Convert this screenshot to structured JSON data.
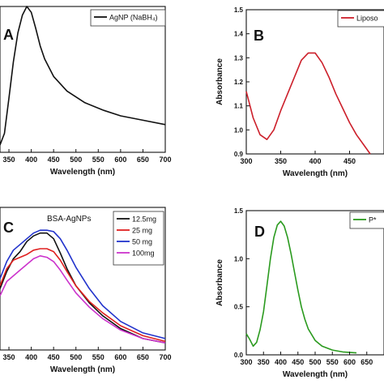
{
  "chart_data": [
    {
      "panel_label": "A",
      "type": "line",
      "xlabel": "Wavelength (nm)",
      "ylabel": "",
      "xlim": [
        330,
        700
      ],
      "ylim": [
        0,
        1
      ],
      "xticks": [
        "350",
        "400",
        "450",
        "500",
        "550",
        "600",
        "650",
        "700"
      ],
      "yticks": [],
      "legend_position": "top-right",
      "series": [
        {
          "name": "AgNP (NaBH₄)",
          "color": "#111111",
          "x": [
            330,
            340,
            350,
            360,
            370,
            380,
            390,
            400,
            410,
            420,
            430,
            450,
            480,
            520,
            560,
            600,
            650,
            700
          ],
          "y": [
            0.05,
            0.13,
            0.37,
            0.62,
            0.82,
            0.94,
            1.0,
            0.96,
            0.85,
            0.73,
            0.64,
            0.52,
            0.42,
            0.34,
            0.29,
            0.25,
            0.22,
            0.19
          ]
        }
      ]
    },
    {
      "panel_label": "B",
      "type": "line",
      "xlabel": "Wavelength (nm)",
      "ylabel": "Absorbance",
      "xlim": [
        300,
        500
      ],
      "ylim": [
        0.9,
        1.5
      ],
      "xticks": [
        "300",
        "350",
        "400",
        "450"
      ],
      "yticks": [
        "0.9",
        "1.0",
        "1.1",
        "1.2",
        "1.3",
        "1.4",
        "1.5"
      ],
      "legend_position": "top-right",
      "series": [
        {
          "name": "Liposo",
          "color": "#cc1f2a",
          "x": [
            300,
            310,
            320,
            330,
            340,
            350,
            360,
            370,
            380,
            390,
            400,
            410,
            420,
            430,
            440,
            450,
            460,
            470,
            480
          ],
          "y": [
            1.16,
            1.05,
            0.98,
            0.96,
            1.0,
            1.08,
            1.15,
            1.22,
            1.29,
            1.32,
            1.32,
            1.28,
            1.22,
            1.15,
            1.09,
            1.03,
            0.98,
            0.94,
            0.9
          ]
        }
      ]
    },
    {
      "panel_label": "C",
      "type": "line",
      "title": "BSA-AgNPs",
      "xlabel": "Wavelength (nm)",
      "ylabel": "",
      "xlim": [
        330,
        700
      ],
      "ylim": [
        0,
        1
      ],
      "xticks": [
        "350",
        "400",
        "450",
        "500",
        "550",
        "600",
        "650",
        "700"
      ],
      "yticks": [],
      "legend_position": "top-right",
      "series": [
        {
          "name": "12.5mg",
          "color": "#111111",
          "x": [
            330,
            345,
            360,
            375,
            390,
            405,
            420,
            435,
            450,
            465,
            480,
            500,
            530,
            560,
            600,
            650,
            700
          ],
          "y": [
            0.43,
            0.55,
            0.64,
            0.69,
            0.76,
            0.8,
            0.82,
            0.82,
            0.78,
            0.68,
            0.57,
            0.45,
            0.33,
            0.24,
            0.15,
            0.08,
            0.05
          ]
        },
        {
          "name": "25 mg",
          "color": "#e02020",
          "x": [
            330,
            345,
            360,
            375,
            390,
            405,
            420,
            435,
            450,
            465,
            480,
            500,
            530,
            560,
            600,
            650,
            700
          ],
          "y": [
            0.45,
            0.57,
            0.63,
            0.65,
            0.67,
            0.7,
            0.71,
            0.71,
            0.69,
            0.63,
            0.55,
            0.45,
            0.34,
            0.26,
            0.17,
            0.1,
            0.06
          ]
        },
        {
          "name": "50 mg",
          "color": "#2233cc",
          "x": [
            330,
            345,
            360,
            375,
            390,
            405,
            420,
            435,
            450,
            465,
            480,
            500,
            530,
            560,
            600,
            650,
            700
          ],
          "y": [
            0.5,
            0.62,
            0.7,
            0.74,
            0.78,
            0.82,
            0.84,
            0.84,
            0.83,
            0.78,
            0.7,
            0.58,
            0.43,
            0.31,
            0.2,
            0.12,
            0.08
          ]
        },
        {
          "name": "100mg",
          "color": "#cc33cc",
          "x": [
            330,
            345,
            360,
            375,
            390,
            405,
            420,
            435,
            450,
            465,
            480,
            500,
            530,
            560,
            600,
            650,
            700
          ],
          "y": [
            0.38,
            0.48,
            0.52,
            0.56,
            0.6,
            0.64,
            0.66,
            0.65,
            0.62,
            0.56,
            0.49,
            0.4,
            0.3,
            0.22,
            0.14,
            0.08,
            0.05
          ]
        }
      ]
    },
    {
      "panel_label": "D",
      "type": "line",
      "xlabel": "Wavelength (nm)",
      "ylabel": "Absorbance",
      "xlim": [
        300,
        700
      ],
      "ylim": [
        0,
        1.5
      ],
      "xticks": [
        "300",
        "350",
        "400",
        "450",
        "500",
        "550",
        "600",
        "650"
      ],
      "yticks": [
        "0.0",
        "0.5",
        "1.0",
        "1.5"
      ],
      "legend_position": "top-right",
      "series": [
        {
          "name": "P*",
          "color": "#2a9a1e",
          "x": [
            300,
            310,
            320,
            330,
            340,
            350,
            360,
            370,
            380,
            390,
            400,
            410,
            420,
            430,
            440,
            450,
            460,
            470,
            480,
            500,
            520,
            550,
            580,
            620
          ],
          "y": [
            0.22,
            0.16,
            0.09,
            0.13,
            0.26,
            0.45,
            0.72,
            1.0,
            1.22,
            1.35,
            1.39,
            1.34,
            1.22,
            1.05,
            0.86,
            0.67,
            0.5,
            0.37,
            0.27,
            0.15,
            0.09,
            0.05,
            0.03,
            0.02
          ]
        }
      ]
    }
  ]
}
